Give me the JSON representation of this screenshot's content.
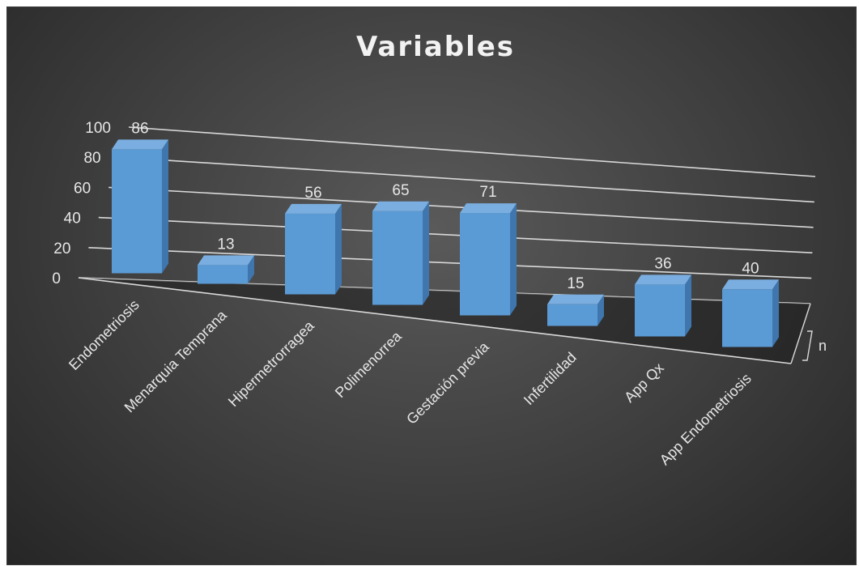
{
  "chart_data": {
    "type": "bar",
    "style": "3d-column",
    "title": "Variables",
    "categories": [
      "Endometriosis",
      "Menarquia Temprana",
      "Hipermetrorragea",
      "Polimenorrea",
      "Gestación previa",
      "Infertilidad",
      "App Qx",
      "App Endometriosis"
    ],
    "series": [
      {
        "name": "n",
        "values": [
          86,
          13,
          56,
          65,
          71,
          15,
          36,
          40
        ]
      }
    ],
    "ylim": [
      0,
      100
    ],
    "yticks": [
      0,
      20,
      40,
      60,
      80,
      100
    ],
    "data_labels": true,
    "grid": true,
    "colors": {
      "bar_front": "#5b9bd5",
      "bar_top": "#7aaee0",
      "bar_side": "#3f76ad",
      "background": "#3e3e3e",
      "text": "#e6e6e6",
      "grid": "#d9d9d9"
    }
  }
}
